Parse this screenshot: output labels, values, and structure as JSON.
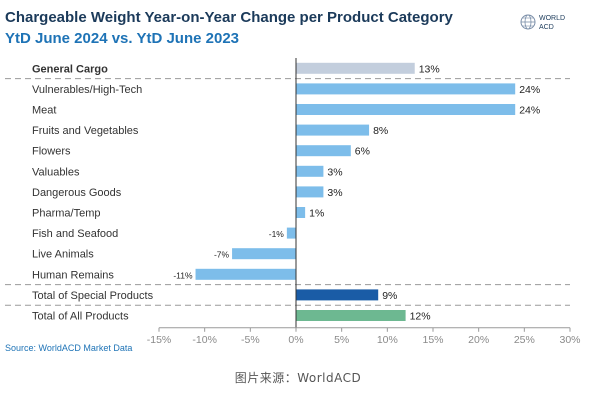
{
  "header": {
    "title": "Chargeable Weight Year-on-Year Change per Product Category",
    "subtitle": "YtD June 2024 vs. YtD June 2023"
  },
  "logo": {
    "line1": "WORLD",
    "line2": "ACD"
  },
  "source": "Source: WorldACD Market Data",
  "caption": "图片来源：WorldACD",
  "colors": {
    "general": "#c3cedd",
    "special": "#7dbdea",
    "total_special": "#1a5ca6",
    "total_all": "#6db891",
    "title_dark": "#1b3a5a",
    "title_blue": "#1e73b6"
  },
  "chart_data": {
    "type": "bar",
    "orientation": "horizontal",
    "title": "Chargeable Weight Year-on-Year Change per Product Category",
    "subtitle": "YtD June 2024 vs. YtD June 2023",
    "categories": [
      "General Cargo",
      "Vulnerables/High-Tech",
      "Meat",
      "Fruits and Vegetables",
      "Flowers",
      "Valuables",
      "Dangerous Goods",
      "Pharma/Temp",
      "Fish and Seafood",
      "Live Animals",
      "Human Remains",
      "Total of Special Products",
      "Total of All Products"
    ],
    "values": [
      13,
      24,
      24,
      8,
      6,
      3,
      3,
      1,
      -1,
      -7,
      -11,
      9,
      12
    ],
    "value_labels": [
      "13%",
      "24%",
      "24%",
      "8%",
      "6%",
      "3%",
      "3%",
      "1%",
      "-1%",
      "-7%",
      "-11%",
      "9%",
      "12%"
    ],
    "groups": [
      "general",
      "special",
      "special",
      "special",
      "special",
      "special",
      "special",
      "special",
      "special",
      "special",
      "special",
      "total_special",
      "total_all"
    ],
    "xlim": [
      -15,
      30
    ],
    "xticks": [
      -15,
      -10,
      -5,
      0,
      5,
      10,
      15,
      20,
      25,
      30
    ],
    "xtick_labels": [
      "-15%",
      "-10%",
      "-5%",
      "0%",
      "5%",
      "10%",
      "15%",
      "20%",
      "25%",
      "30%"
    ],
    "grid": false,
    "legend": "none"
  }
}
